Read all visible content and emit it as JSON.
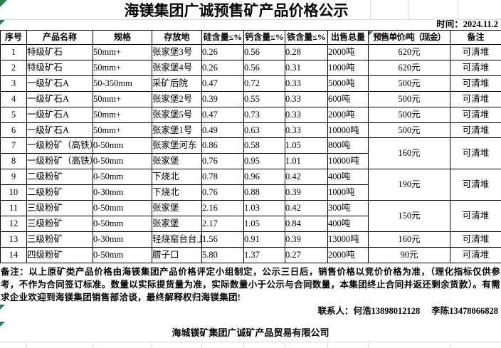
{
  "page": {
    "title": "海镁集团广诚预售矿产品价格公示",
    "time_label": "时间：2024.11.2",
    "background_color": "#ffffff",
    "border_color": "#000000",
    "gridline_color": "#d9d9d9",
    "error_marker_color": "#2e7d4f"
  },
  "table": {
    "headers": [
      "序号",
      "产品名称",
      "规格",
      "存放地",
      "硅含量≤%",
      "钙含量≤%",
      "铁含量≤%",
      "出售总量",
      "预售单价/吨（现金）",
      "备注"
    ],
    "rows": [
      {
        "no": "1",
        "name": "特级矿石",
        "spec": "50mm+",
        "loc": "张家堡3号",
        "si": "0.26",
        "ca": "0.56",
        "fe": "0.28",
        "total": "2000吨",
        "price": "620元",
        "price_span": 1,
        "remark": "可清堆",
        "remark_span": 1
      },
      {
        "no": "2",
        "name": "特级矿石",
        "spec": "50mm+",
        "loc": "张家堡4号",
        "si": "0.26",
        "ca": "0.56",
        "fe": "0.31",
        "total": "1000吨",
        "price": "620元",
        "price_span": 1,
        "remark": "可清堆",
        "remark_span": 1
      },
      {
        "no": "3",
        "name": "一级矿石A",
        "spec": "50-350mm",
        "loc": "采矿后院",
        "si": "0.47",
        "ca": "0.72",
        "fe": "0.33",
        "total": "5000吨",
        "price": "500元",
        "price_span": 1,
        "remark": "可清堆",
        "remark_span": 1
      },
      {
        "no": "4",
        "name": "一级矿石A",
        "spec": "50mm+",
        "loc": "张家堡2号",
        "si": "0.39",
        "ca": "0.55",
        "fe": "0.33",
        "total": "600吨",
        "price": "500元",
        "price_span": 1,
        "remark": "可清堆",
        "remark_span": 1
      },
      {
        "no": "5",
        "name": "一级矿石A",
        "spec": "50mm+",
        "loc": "张家堡5号",
        "si": "0.47",
        "ca": "0.73",
        "fe": "0.33",
        "total": "2000吨",
        "price": "500元",
        "price_span": 1,
        "remark": "可清堆",
        "remark_span": 1
      },
      {
        "no": "6",
        "name": "一级矿石A",
        "spec": "50mm+",
        "loc": "张家堡1号",
        "si": "0.49",
        "ca": "0.63",
        "fe": "0.33",
        "total": "10000吨",
        "price": "500元",
        "price_span": 1,
        "remark": "可清堆",
        "remark_span": 1
      },
      {
        "no": "7",
        "name": "一级粉矿（高铁）",
        "spec": "0-50mm",
        "loc": "张家堡河东",
        "si": "0.86",
        "ca": "0.58",
        "fe": "1.05",
        "total": "800吨",
        "price": "160元",
        "price_span": 2,
        "remark": "可清堆",
        "remark_span": 2
      },
      {
        "no": "8",
        "name": "一级粉矿（高铁）",
        "spec": "0-50mm",
        "loc": "张家堡",
        "si": "0.76",
        "ca": "0.95",
        "fe": "1.01",
        "total": "10000吨",
        "price": null,
        "remark": null
      },
      {
        "no": "9",
        "name": "二级粉矿",
        "spec": "0-50mm",
        "loc": "下烧北",
        "si": "0.78",
        "ca": "0.96",
        "fe": "0.42",
        "total": "400吨",
        "price": "190元",
        "price_span": 2,
        "remark": "可清堆",
        "remark_span": 2
      },
      {
        "no": "10",
        "name": "二级粉矿",
        "spec": "0-30mm",
        "loc": "下烧北",
        "si": "0.76",
        "ca": "0.88",
        "fe": "0.39",
        "total": "1000吨",
        "price": null,
        "remark": null
      },
      {
        "no": "11",
        "name": "三级粉矿",
        "spec": "0-50mm",
        "loc": "张家堡",
        "si": "2.16",
        "ca": "1.03",
        "fe": "0.42",
        "total": "300吨",
        "price": "150元",
        "price_span": 2,
        "remark": "可清堆",
        "remark_span": 2
      },
      {
        "no": "12",
        "name": "三级粉矿",
        "spec": "0-50mm",
        "loc": "张家堡",
        "si": "2.17",
        "ca": "1.05",
        "fe": "0.84",
        "total": "400吨",
        "price": null,
        "remark": null
      },
      {
        "no": "13",
        "name": "三级粉矿",
        "spec": "0-30mm",
        "loc": "轻烧窑台台上",
        "si": "1.56",
        "ca": "0.91",
        "fe": "0.39",
        "total": "13000吨",
        "price": "160元",
        "price_span": 1,
        "remark": "可清堆",
        "remark_span": 1
      },
      {
        "no": "14",
        "name": "四级粉矿",
        "spec": "0-50mm",
        "loc": "腊子口",
        "si": "5.80",
        "ca": "1.37",
        "fe": "0.27",
        "total": "2000吨",
        "price": "90元",
        "price_span": 1,
        "remark": "可清堆",
        "remark_span": 1
      }
    ]
  },
  "notes": "备注：以上原矿类产品价格由海镁集团产品价格评定小组制定，公示三日后，销售价格以竞价价格为准，（理化指标仅供参考，不作为合同签订标准。数量以实际提货量为准，实际数量小于公示与合同数量，本集团终止合同并返还剩余货款）。有需求企业欢迎到海镁集团销售部洽谈，最终解释权归海镁集团!",
  "footer": {
    "contact_label": "联系人：",
    "contact1": "何浩13898012128",
    "contact2": "李陈13478066828",
    "company": "海城镁矿集团广诚矿产品贸易有限公司"
  }
}
